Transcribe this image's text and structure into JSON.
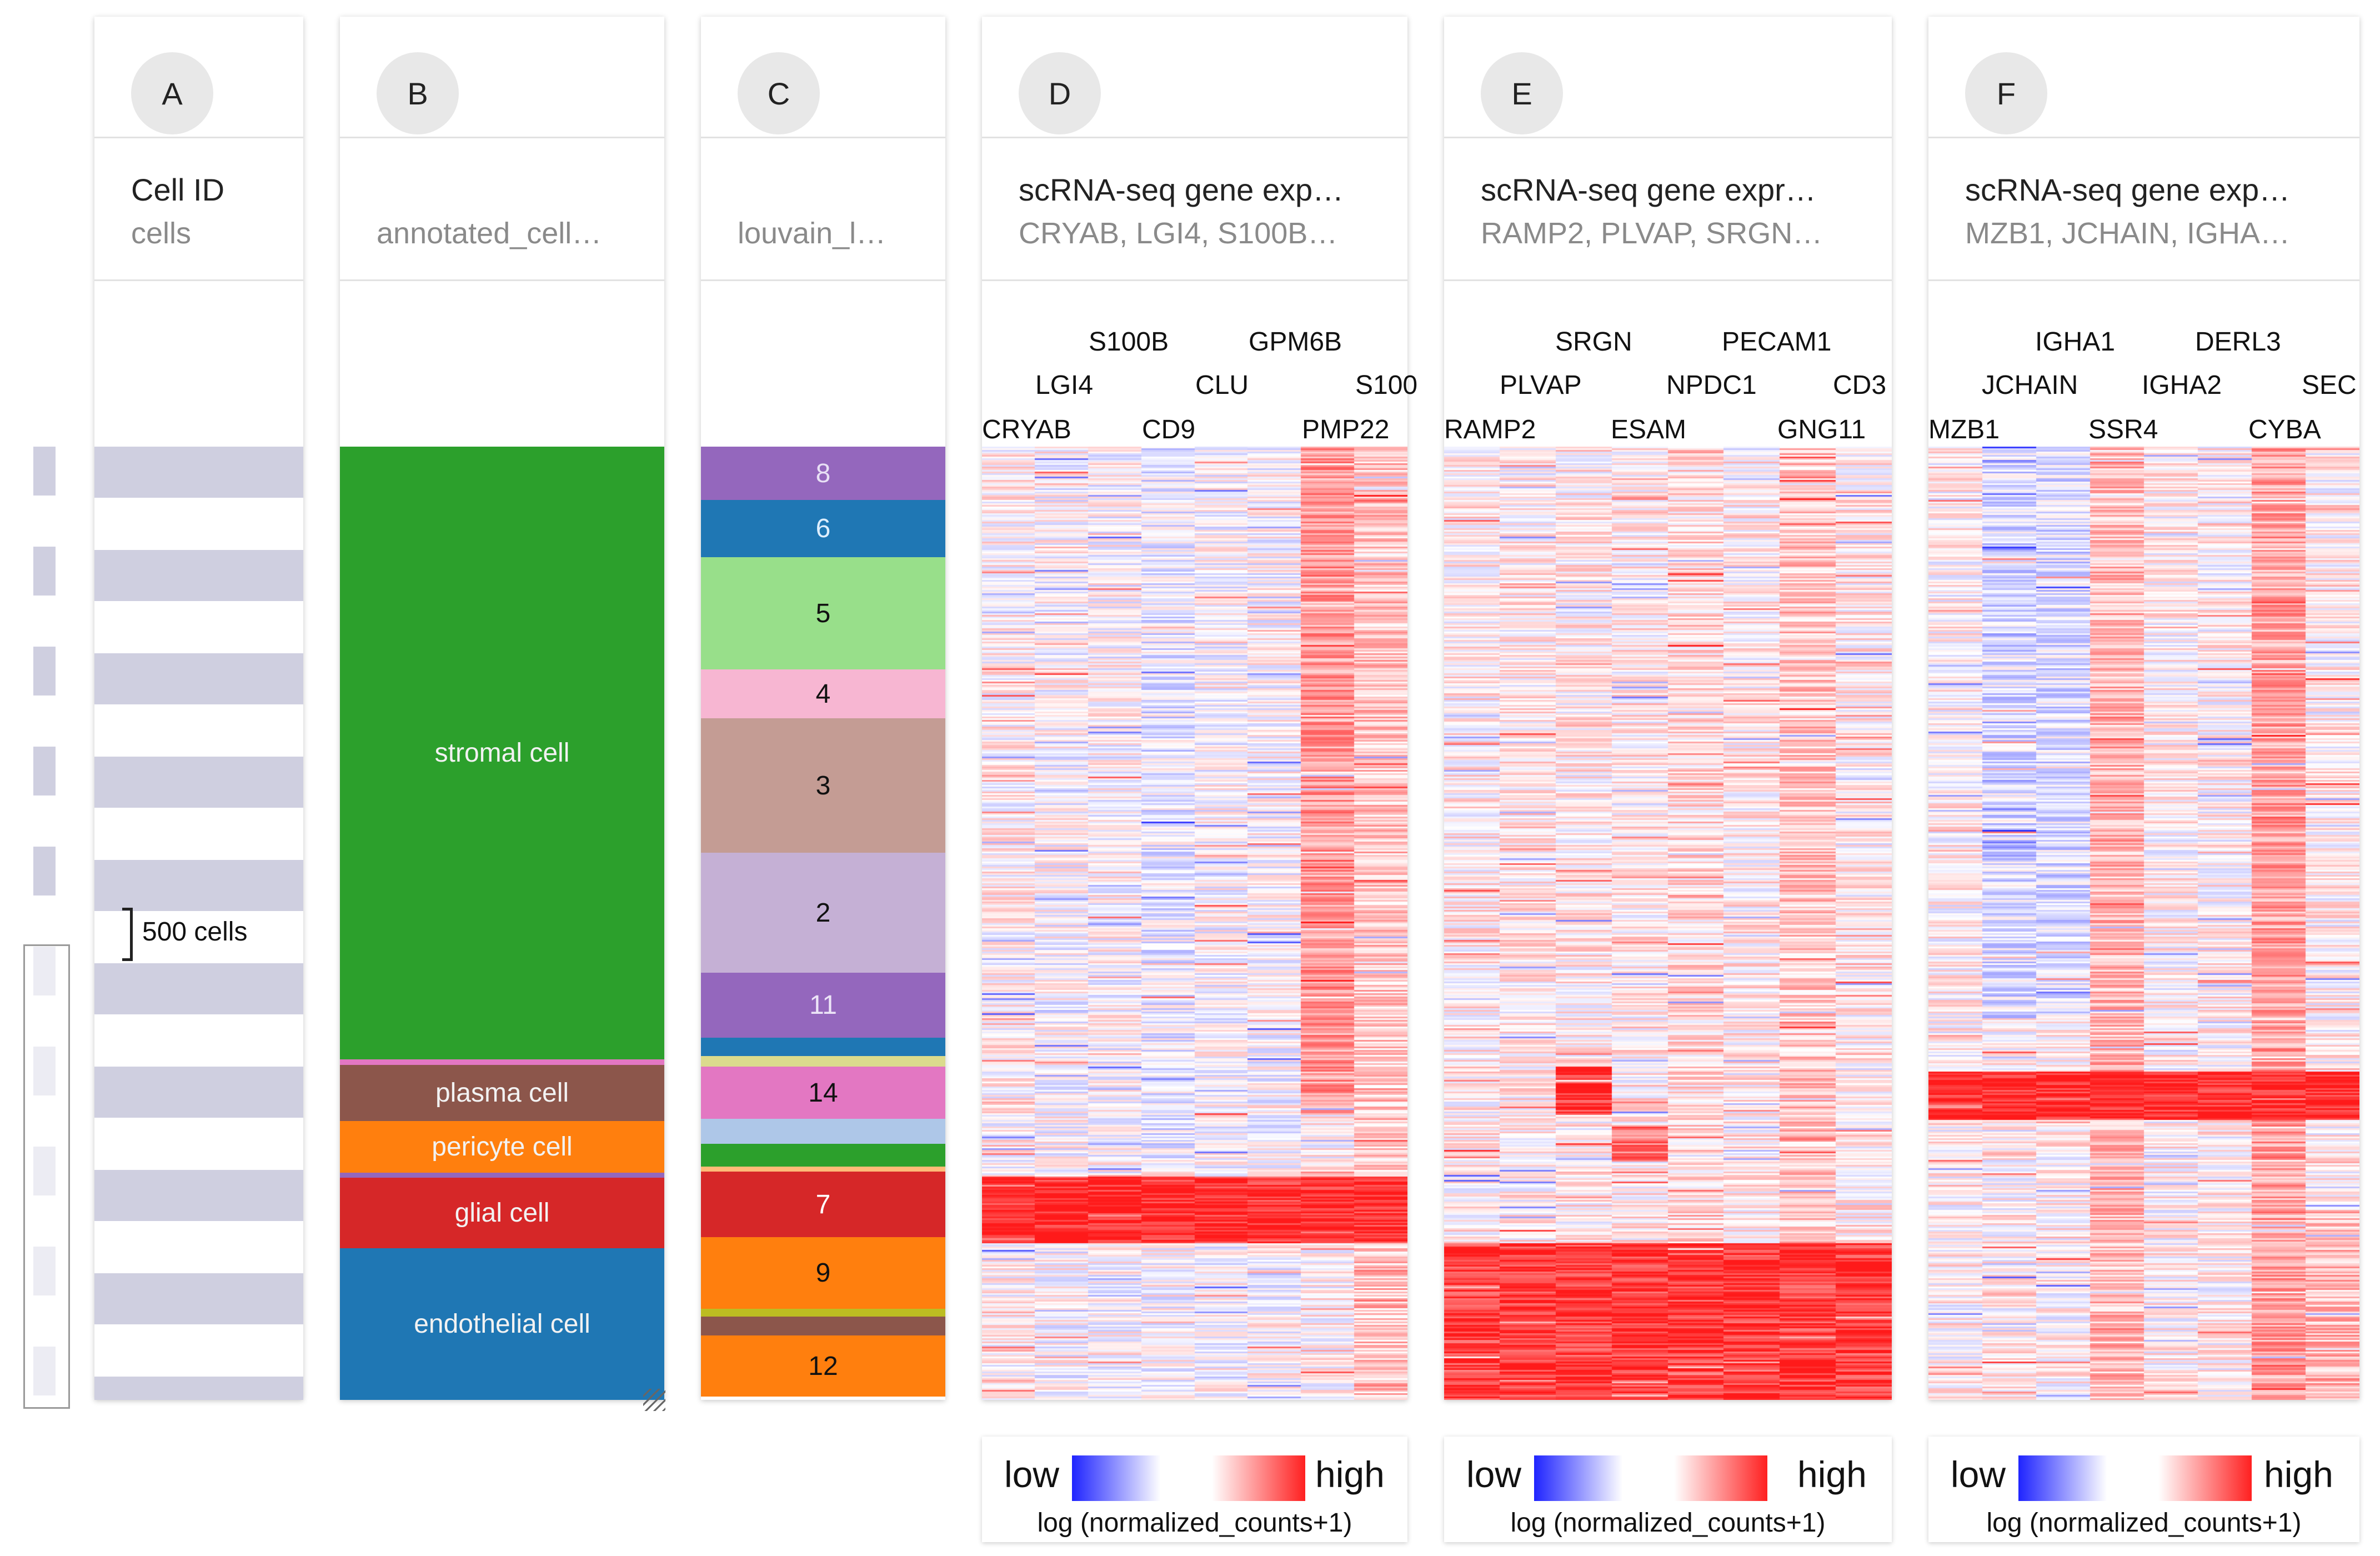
{
  "panels": [
    {
      "id": "A",
      "title": "Cell ID",
      "subtitle": "cells"
    },
    {
      "id": "B",
      "title": "",
      "subtitle": "annotated_cell…"
    },
    {
      "id": "C",
      "title": "",
      "subtitle": "louvain_l…"
    },
    {
      "id": "D",
      "title": "scRNA-seq gene exp…",
      "subtitle": "CRYAB, LGI4, S100B…"
    },
    {
      "id": "E",
      "title": "scRNA-seq gene expr…",
      "subtitle": "RAMP2, PLVAP, SRGN…"
    },
    {
      "id": "F",
      "title": "scRNA-seq gene exp…",
      "subtitle": "MZB1, JCHAIN, IGHA…"
    }
  ],
  "scale_label": "500 cells",
  "annotated_cells": [
    {
      "label": "stromal cell",
      "color": "#2ca02c",
      "share": 0.643
    },
    {
      "label": "",
      "color": "#e377c2",
      "share": 0.006
    },
    {
      "label": "plasma cell",
      "color": "#8c564b",
      "share": 0.059
    },
    {
      "label": "pericyte cell",
      "color": "#ff7f0e",
      "share": 0.054
    },
    {
      "label": "",
      "color": "#9467bd",
      "share": 0.005
    },
    {
      "label": "glial cell",
      "color": "#d62728",
      "share": 0.074
    },
    {
      "label": "endothelial cell",
      "color": "#1f77b4",
      "share": 0.159
    }
  ],
  "louvain_clusters": [
    {
      "label": "8",
      "color": "#9467bd",
      "share": 0.056,
      "text": "#e8e0f5"
    },
    {
      "label": "6",
      "color": "#1f77b4",
      "share": 0.06,
      "text": "#ddeeff"
    },
    {
      "label": "5",
      "color": "#98df8a",
      "share": 0.118,
      "text": "#111111"
    },
    {
      "label": "4",
      "color": "#f7b6d2",
      "share": 0.051,
      "text": "#111111"
    },
    {
      "label": "3",
      "color": "#c49c94",
      "share": 0.141,
      "text": "#111111"
    },
    {
      "label": "2",
      "color": "#c5b0d5",
      "share": 0.126,
      "text": "#111111"
    },
    {
      "label": "11",
      "color": "#9467bd",
      "share": 0.068,
      "text": "#ece4f7"
    },
    {
      "label": "",
      "color": "#1f77b4",
      "share": 0.019,
      "text": "#111111"
    },
    {
      "label": "",
      "color": "#dbdb8d",
      "share": 0.011,
      "text": "#111111"
    },
    {
      "label": "14",
      "color": "#e377c2",
      "share": 0.055,
      "text": "#111111"
    },
    {
      "label": "",
      "color": "#aec7e8",
      "share": 0.026,
      "text": "#111111"
    },
    {
      "label": "",
      "color": "#2ca02c",
      "share": 0.024,
      "text": "#111111"
    },
    {
      "label": "",
      "color": "#ffbb78",
      "share": 0.005,
      "text": "#111111"
    },
    {
      "label": "7",
      "color": "#d62728",
      "share": 0.069,
      "text": "#ffffff"
    },
    {
      "label": "9",
      "color": "#ff7f0e",
      "share": 0.075,
      "text": "#111111"
    },
    {
      "label": "",
      "color": "#bcbd22",
      "share": 0.008,
      "text": "#111111"
    },
    {
      "label": "",
      "color": "#8c564b",
      "share": 0.02,
      "text": "#111111"
    },
    {
      "label": "12",
      "color": "#ff7f0e",
      "share": 0.064,
      "text": "#111111"
    }
  ],
  "heatmaps": [
    {
      "id": "D",
      "genes": [
        "CRYAB",
        "LGI4",
        "S100B",
        "CD9",
        "CLU",
        "GPM6B",
        "PMP22",
        "S100"
      ]
    },
    {
      "id": "E",
      "genes": [
        "RAMP2",
        "PLVAP",
        "SRGN",
        "ESAM",
        "NPDC1",
        "PECAM1",
        "GNG11",
        "CD3"
      ]
    },
    {
      "id": "F",
      "genes": [
        "MZB1",
        "JCHAIN",
        "IGHA1",
        "SSR4",
        "IGHA2",
        "DERL3",
        "CYBA",
        "SEC"
      ]
    }
  ],
  "legend": {
    "low": "low",
    "high": "high",
    "caption": "log (normalized_counts+1)"
  },
  "colors": {
    "low": "#1f24ff",
    "mid": "#ffffff",
    "high": "#ff1a1a",
    "row_stripe": "#cfcfe0"
  }
}
